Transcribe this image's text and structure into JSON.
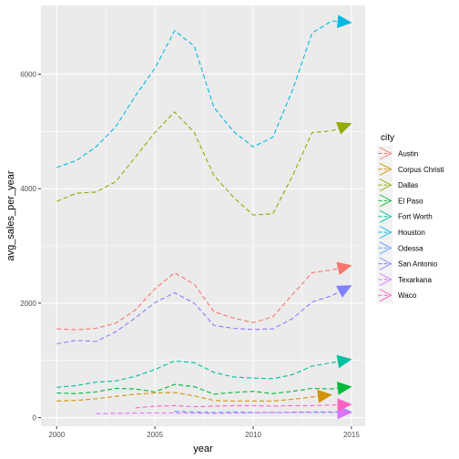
{
  "chart_data": {
    "type": "line",
    "xlabel": "year",
    "ylabel": "avg_sales_per_year",
    "xlim": [
      1999.2,
      2015.7
    ],
    "ylim": [
      -150,
      7200
    ],
    "x_ticks": [
      2000,
      2005,
      2010,
      2015
    ],
    "y_ticks": [
      0,
      2000,
      4000,
      6000
    ],
    "x_tick_labels": [
      "2000",
      "2005",
      "2010",
      "2015"
    ],
    "y_tick_labels": [
      "0",
      "2000",
      "4000",
      "6000"
    ],
    "grid": true,
    "line_style": "dashed",
    "end_marker": "arrow",
    "legend": {
      "title": "city",
      "position": "right"
    },
    "series": [
      {
        "name": "Austin",
        "color": "#F8766D",
        "x": [
          2000,
          2001,
          2002,
          2003,
          2004,
          2005,
          2006,
          2007,
          2008,
          2009,
          2010,
          2011,
          2012,
          2013,
          2014,
          2015
        ],
        "y": [
          1550,
          1535,
          1560,
          1650,
          1880,
          2250,
          2530,
          2330,
          1850,
          1740,
          1660,
          1760,
          2150,
          2530,
          2580,
          2660
        ]
      },
      {
        "name": "Corpus Christi",
        "color": "#D39200",
        "x": [
          2000,
          2001,
          2002,
          2003,
          2004,
          2005,
          2006,
          2007,
          2008,
          2009,
          2010,
          2011,
          2012,
          2013,
          2014
        ],
        "y": [
          290,
          300,
          330,
          370,
          410,
          430,
          440,
          380,
          300,
          290,
          290,
          290,
          320,
          360,
          400
        ]
      },
      {
        "name": "Dallas",
        "color": "#93AA00",
        "x": [
          2000,
          2001,
          2002,
          2003,
          2004,
          2005,
          2006,
          2007,
          2008,
          2009,
          2010,
          2011,
          2012,
          2013,
          2014,
          2015
        ],
        "y": [
          3780,
          3920,
          3940,
          4120,
          4550,
          4980,
          5340,
          4980,
          4230,
          3850,
          3540,
          3560,
          4220,
          4980,
          5010,
          5140
        ]
      },
      {
        "name": "El Paso",
        "color": "#00BA38",
        "x": [
          2000,
          2001,
          2002,
          2003,
          2004,
          2005,
          2006,
          2007,
          2008,
          2009,
          2010,
          2011,
          2012,
          2013,
          2014,
          2015
        ],
        "y": [
          430,
          420,
          450,
          510,
          500,
          450,
          580,
          540,
          410,
          440,
          460,
          420,
          460,
          510,
          500,
          540
        ]
      },
      {
        "name": "Fort Worth",
        "color": "#00C19F",
        "x": [
          2000,
          2001,
          2002,
          2003,
          2004,
          2005,
          2006,
          2007,
          2008,
          2009,
          2010,
          2011,
          2012,
          2013,
          2014,
          2015
        ],
        "y": [
          530,
          560,
          620,
          640,
          720,
          840,
          990,
          960,
          790,
          710,
          690,
          680,
          750,
          900,
          960,
          1020
        ]
      },
      {
        "name": "Houston",
        "color": "#00B9E3",
        "x": [
          2000,
          2001,
          2002,
          2003,
          2004,
          2005,
          2006,
          2007,
          2008,
          2009,
          2010,
          2011,
          2012,
          2013,
          2014,
          2015
        ],
        "y": [
          4370,
          4490,
          4730,
          5080,
          5620,
          6100,
          6760,
          6490,
          5420,
          5000,
          4730,
          4900,
          5720,
          6720,
          6930,
          6900
        ]
      },
      {
        "name": "Odessa",
        "color": "#619CFF",
        "x": [
          2006,
          2007,
          2008,
          2009,
          2010,
          2011,
          2012,
          2013,
          2014,
          2015
        ],
        "y": [
          110,
          100,
          90,
          100,
          90,
          90,
          95,
          100,
          100,
          100
        ]
      },
      {
        "name": "San Antonio",
        "color": "#8080FF",
        "x": [
          2000,
          2001,
          2002,
          2003,
          2004,
          2005,
          2006,
          2007,
          2008,
          2009,
          2010,
          2011,
          2012,
          2013,
          2014,
          2015
        ],
        "y": [
          1290,
          1350,
          1330,
          1500,
          1740,
          2010,
          2180,
          2000,
          1610,
          1560,
          1540,
          1550,
          1730,
          2020,
          2130,
          2310
        ]
      },
      {
        "name": "Texarkana",
        "color": "#DB72FB",
        "x": [
          2002,
          2003,
          2004,
          2005,
          2006,
          2007,
          2008,
          2009,
          2010,
          2011,
          2012,
          2013,
          2014,
          2015
        ],
        "y": [
          70,
          75,
          80,
          80,
          80,
          80,
          75,
          80,
          85,
          90,
          90,
          90,
          90,
          90
        ]
      },
      {
        "name": "Waco",
        "color": "#FF61C3",
        "x": [
          2004,
          2005,
          2006,
          2007,
          2008,
          2009,
          2010,
          2011,
          2012,
          2013,
          2014,
          2015
        ],
        "y": [
          170,
          200,
          210,
          190,
          200,
          210,
          210,
          200,
          210,
          210,
          220,
          230
        ]
      }
    ]
  }
}
